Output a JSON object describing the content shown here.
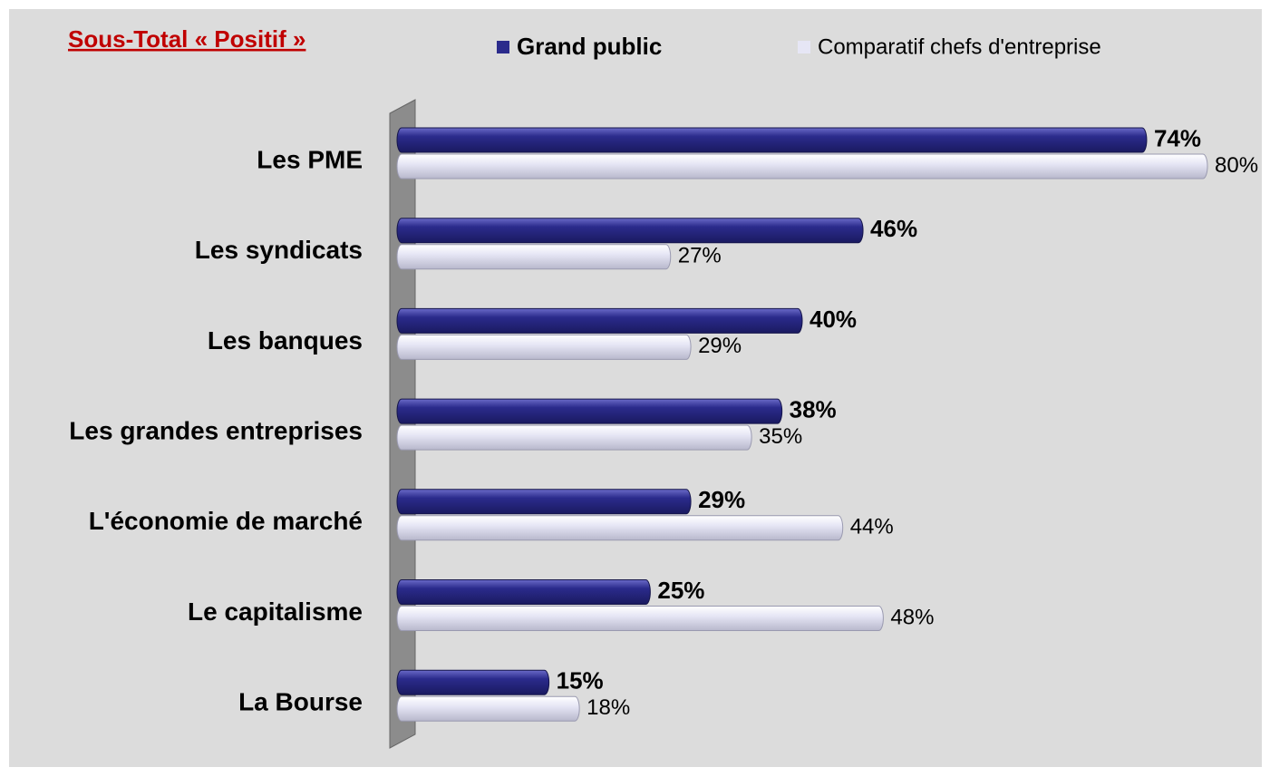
{
  "chart_data": {
    "type": "bar",
    "orientation": "horizontal",
    "title": "Sous-Total « Positif »",
    "categories": [
      "Les PME",
      "Les syndicats",
      "Les banques",
      "Les grandes entreprises",
      "L'économie de marché",
      "Le capitalisme",
      "La Bourse"
    ],
    "series": [
      {
        "name": "Grand public",
        "color": "#2b2b8c",
        "values": [
          74,
          46,
          40,
          38,
          29,
          25,
          15
        ],
        "value_labels": [
          "74%",
          "46%",
          "40%",
          "38%",
          "29%",
          "25%",
          "15%"
        ]
      },
      {
        "name": "Comparatif chefs d'entreprise",
        "color": "#e6e6f5",
        "values": [
          80,
          27,
          29,
          35,
          44,
          48,
          18
        ],
        "value_labels": [
          "80%",
          "27%",
          "29%",
          "35%",
          "44%",
          "48%",
          "18%"
        ]
      }
    ],
    "legend": "top"
  }
}
